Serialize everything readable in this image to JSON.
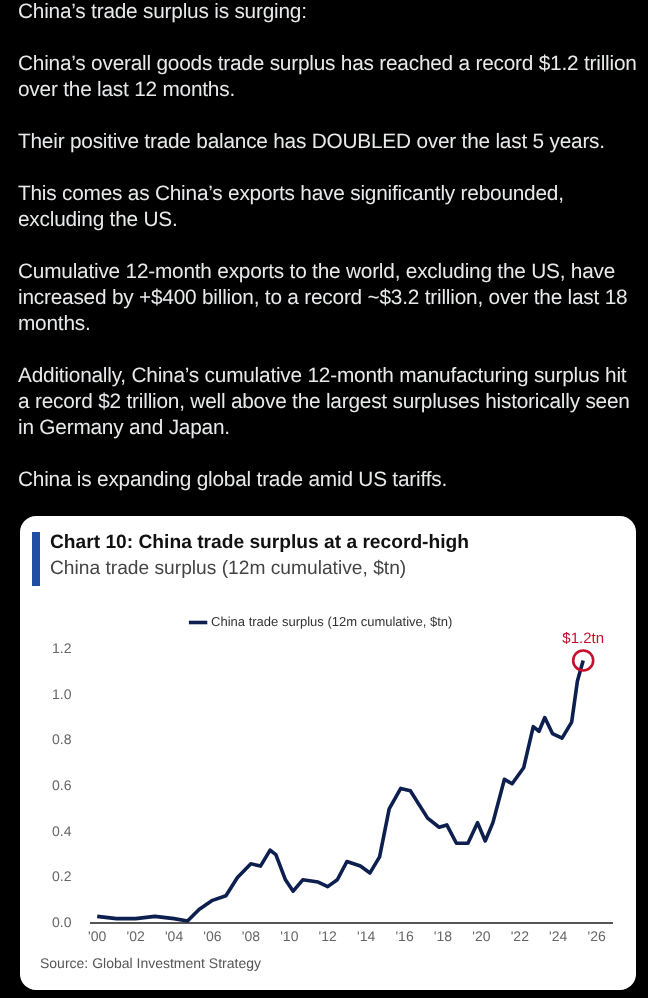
{
  "chart_data": {
    "type": "line",
    "title": "Chart 10: China trade surplus at a record-high",
    "subtitle": "China trade surplus (12m cumulative, $tn)",
    "annotations": [
      "China’s trade surplus is surging:",
      "China’s overall goods trade surplus has reached a record $1.2 trillion over the last 12 months.",
      "Their positive trade balance has DOUBLED over the last 5 years.",
      "This comes as China’s exports have significantly rebounded, excluding the US.",
      "Cumulative 12-month exports to the world, excluding the US, have increased by +$400 billion, to a record ~$3.2 trillion, over the last 18 months.",
      "Additionally, China’s cumulative 12-month manufacturing surplus hit a record $2 trillion, well above the largest surpluses historically seen in Germany and Japan.",
      "China is expanding global trade amid US tariffs.",
      "Source: Global Investment Strategy",
      {
        "text": "$1.2tn",
        "x": 2025.3,
        "y": 1.15
      }
    ],
    "series": [
      {
        "name": "China trade surplus (12m cumulative, $tn)",
        "color": "#0d1f4e",
        "x": [
          2000,
          2001,
          2002,
          2003,
          2004,
          2004.7,
          2005.3,
          2006,
          2006.7,
          2007.3,
          2008,
          2008.5,
          2009,
          2009.3,
          2009.8,
          2010.2,
          2010.7,
          2011.5,
          2012,
          2012.5,
          2013,
          2013.7,
          2014.2,
          2014.7,
          2015.2,
          2015.8,
          2016.3,
          2017.2,
          2017.8,
          2018.2,
          2018.7,
          2019.3,
          2019.8,
          2020.2,
          2020.6,
          2021.2,
          2021.6,
          2022.2,
          2022.7,
          2023,
          2023.3,
          2023.7,
          2024.2,
          2024.7,
          2025,
          2025.3
        ],
        "values": [
          0.03,
          0.02,
          0.02,
          0.03,
          0.02,
          0.01,
          0.06,
          0.1,
          0.12,
          0.2,
          0.26,
          0.25,
          0.32,
          0.3,
          0.19,
          0.14,
          0.19,
          0.18,
          0.16,
          0.19,
          0.27,
          0.25,
          0.22,
          0.29,
          0.5,
          0.59,
          0.58,
          0.46,
          0.42,
          0.43,
          0.35,
          0.35,
          0.44,
          0.36,
          0.44,
          0.63,
          0.61,
          0.68,
          0.86,
          0.84,
          0.9,
          0.83,
          0.81,
          0.88,
          1.06,
          1.15
        ]
      }
    ],
    "xlim": [
      1999.7,
      2026.8
    ],
    "xticks": [
      {
        "value": 2000,
        "label": "'00"
      },
      {
        "value": 2002,
        "label": "'02"
      },
      {
        "value": 2004,
        "label": "'04"
      },
      {
        "value": 2006,
        "label": "'06"
      },
      {
        "value": 2008,
        "label": "'08"
      },
      {
        "value": 2010,
        "label": "'10"
      },
      {
        "value": 2012,
        "label": "'12"
      },
      {
        "value": 2014,
        "label": "'14"
      },
      {
        "value": 2016,
        "label": "'16"
      },
      {
        "value": 2018,
        "label": "'18"
      },
      {
        "value": 2020,
        "label": "'20"
      },
      {
        "value": 2022,
        "label": "'22"
      },
      {
        "value": 2024,
        "label": "'24"
      },
      {
        "value": 2026,
        "label": "'26"
      }
    ],
    "ylim": [
      0,
      1.2
    ],
    "yticks": [
      {
        "value": 0,
        "label": "0.0"
      },
      {
        "value": 0.2,
        "label": "0.2"
      },
      {
        "value": 0.4,
        "label": "0.4"
      },
      {
        "value": 0.6,
        "label": "0.6"
      },
      {
        "value": 0.8,
        "label": "0.8"
      },
      {
        "value": 1,
        "label": "1.0"
      },
      {
        "value": 1.2,
        "label": "1.2"
      }
    ],
    "legend": "top",
    "marker": "none",
    "line_style": "solid"
  }
}
